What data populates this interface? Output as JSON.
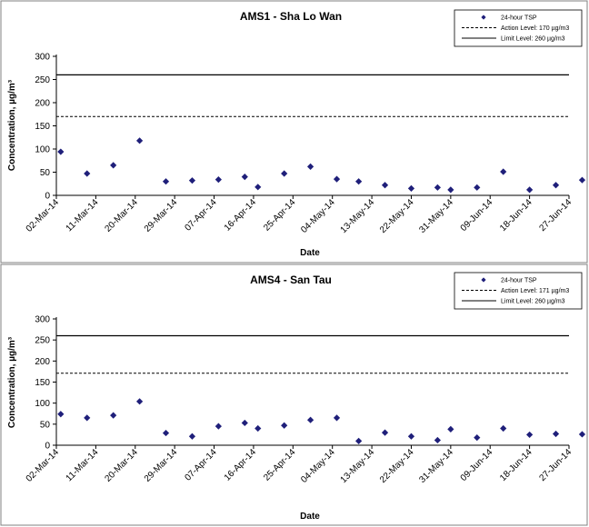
{
  "chart_data": [
    {
      "type": "scatter",
      "title": "AMS1 - Sha Lo Wan",
      "xlabel": "Date",
      "ylabel": "Concentration, µg/m³",
      "ylim": [
        0,
        300
      ],
      "yticks": [
        "0",
        "50",
        "100",
        "150",
        "200",
        "250",
        "300"
      ],
      "xlim": [
        "2014-03-02",
        "2014-06-27"
      ],
      "xticks": [
        "02-Mar-14",
        "11-Mar-14",
        "20-Mar-14",
        "29-Mar-14",
        "07-Apr-14",
        "16-Apr-14",
        "25-Apr-14",
        "04-May-14",
        "13-May-14",
        "22-May-14",
        "31-May-14",
        "09-Jun-14",
        "18-Jun-14",
        "27-Jun-14"
      ],
      "grid": false,
      "legend_position": "top-right",
      "colors": {
        "points": "#1f1f7a",
        "lines": "#000000"
      },
      "series": [
        {
          "name": "24-hour TSP",
          "x": [
            "2014-03-03",
            "2014-03-09",
            "2014-03-15",
            "2014-03-21",
            "2014-03-27",
            "2014-04-02",
            "2014-04-08",
            "2014-04-14",
            "2014-04-17",
            "2014-04-23",
            "2014-04-29",
            "2014-05-05",
            "2014-05-10",
            "2014-05-16",
            "2014-05-22",
            "2014-05-28",
            "2014-05-31",
            "2014-06-06",
            "2014-06-12",
            "2014-06-18",
            "2014-06-24",
            "2014-06-30"
          ],
          "y": [
            94,
            47,
            65,
            118,
            30,
            32,
            34,
            40,
            18,
            47,
            62,
            35,
            30,
            22,
            15,
            17,
            12,
            17,
            51,
            12,
            22,
            33
          ]
        }
      ],
      "reference_lines": [
        {
          "name": "Action Level: 170 µg/m3",
          "value": 170,
          "style": "dashed"
        },
        {
          "name": "Limit Level: 260 µg/m3",
          "value": 260,
          "style": "solid"
        }
      ]
    },
    {
      "type": "scatter",
      "title": "AMS4 - San Tau",
      "xlabel": "Date",
      "ylabel": "Concentration, µg/m³",
      "ylim": [
        0,
        300
      ],
      "yticks": [
        "0",
        "50",
        "100",
        "150",
        "200",
        "250",
        "300"
      ],
      "xlim": [
        "2014-03-02",
        "2014-06-27"
      ],
      "xticks": [
        "02-Mar-14",
        "11-Mar-14",
        "20-Mar-14",
        "29-Mar-14",
        "07-Apr-14",
        "16-Apr-14",
        "25-Apr-14",
        "04-May-14",
        "13-May-14",
        "22-May-14",
        "31-May-14",
        "09-Jun-14",
        "18-Jun-14",
        "27-Jun-14"
      ],
      "grid": false,
      "legend_position": "top-right",
      "colors": {
        "points": "#1f1f7a",
        "lines": "#000000"
      },
      "series": [
        {
          "name": "24-hour TSP",
          "x": [
            "2014-03-03",
            "2014-03-09",
            "2014-03-15",
            "2014-03-21",
            "2014-03-27",
            "2014-04-02",
            "2014-04-08",
            "2014-04-14",
            "2014-04-17",
            "2014-04-23",
            "2014-04-29",
            "2014-05-05",
            "2014-05-10",
            "2014-05-16",
            "2014-05-22",
            "2014-05-28",
            "2014-05-31",
            "2014-06-06",
            "2014-06-12",
            "2014-06-18",
            "2014-06-24",
            "2014-06-30"
          ],
          "y": [
            74,
            65,
            71,
            104,
            29,
            21,
            45,
            53,
            40,
            47,
            60,
            65,
            10,
            30,
            21,
            12,
            38,
            18,
            40,
            25,
            27,
            26
          ]
        }
      ],
      "reference_lines": [
        {
          "name": "Action Level: 171 µg/m3",
          "value": 171,
          "style": "dashed"
        },
        {
          "name": "Limit Level: 260 µg/m3",
          "value": 260,
          "style": "solid"
        }
      ]
    }
  ]
}
